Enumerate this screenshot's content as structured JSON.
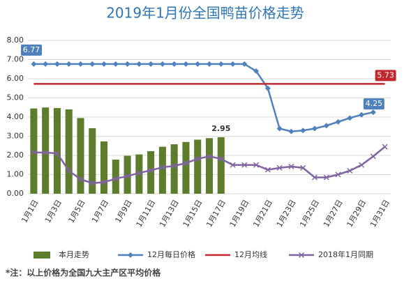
{
  "chart_data": {
    "type": "combo",
    "title": "2019年1月份全国鸭苗价格走势",
    "categories": [
      "1月1日",
      null,
      "1月3日",
      null,
      "1月5日",
      null,
      "1月7日",
      null,
      "1月9日",
      null,
      "1月11日",
      null,
      "1月13日",
      null,
      "1月15日",
      null,
      "1月17日",
      null,
      "1月19日",
      null,
      "1月21日",
      null,
      "1月23日",
      null,
      "1月25日",
      null,
      "1月27日",
      null,
      "1月29日",
      null,
      "1月31日"
    ],
    "ylim": [
      0,
      8
    ],
    "yticks": [
      {
        "value": 0,
        "label": "0.00"
      },
      {
        "value": 1,
        "label": "1.00"
      },
      {
        "value": 2,
        "label": "2.00"
      },
      {
        "value": 3,
        "label": "3.00"
      },
      {
        "value": 4,
        "label": "4.00"
      },
      {
        "value": 5,
        "label": "5.00"
      },
      {
        "value": 6,
        "label": "6.00"
      },
      {
        "value": 7,
        "label": "7.00"
      },
      {
        "value": 8,
        "label": "8.00"
      }
    ],
    "grid": true,
    "series": [
      {
        "name": "本月走势",
        "type": "bar",
        "color": "#5e7d2c",
        "labeled": [
          16
        ],
        "values": [
          4.45,
          4.5,
          4.47,
          4.4,
          3.95,
          3.42,
          2.73,
          1.78,
          1.98,
          2.05,
          2.22,
          2.45,
          2.58,
          2.7,
          2.82,
          2.9,
          2.95,
          null,
          null,
          null,
          null,
          null,
          null,
          null,
          null,
          null,
          null,
          null,
          null,
          null,
          null
        ]
      },
      {
        "name": "12月每日价格",
        "type": "line",
        "marker": "diamond",
        "color": "#4f81bd",
        "labeled": [
          0,
          29
        ],
        "values": [
          6.77,
          6.77,
          6.77,
          6.77,
          6.77,
          6.77,
          6.77,
          6.77,
          6.77,
          6.77,
          6.77,
          6.77,
          6.77,
          6.77,
          6.77,
          6.77,
          6.77,
          6.77,
          6.77,
          6.4,
          5.5,
          3.4,
          3.25,
          3.3,
          3.4,
          3.55,
          3.75,
          3.95,
          4.12,
          4.25,
          null
        ]
      },
      {
        "name": "12月均线",
        "type": "line",
        "marker": "none",
        "color": "#c0282d",
        "labeled": [
          30
        ],
        "values": [
          5.73,
          5.73,
          5.73,
          5.73,
          5.73,
          5.73,
          5.73,
          5.73,
          5.73,
          5.73,
          5.73,
          5.73,
          5.73,
          5.73,
          5.73,
          5.73,
          5.73,
          5.73,
          5.73,
          5.73,
          5.73,
          5.73,
          5.73,
          5.73,
          5.73,
          5.73,
          5.73,
          5.73,
          5.73,
          5.73,
          5.73
        ]
      },
      {
        "name": "2018年1月同期",
        "type": "line",
        "marker": "x",
        "color": "#8064a2",
        "labeled": [],
        "values": [
          2.15,
          2.15,
          2.1,
          1.2,
          0.75,
          0.55,
          0.6,
          0.78,
          0.92,
          1.08,
          1.22,
          1.38,
          1.45,
          1.6,
          1.82,
          1.95,
          1.82,
          1.5,
          1.5,
          1.5,
          1.25,
          1.35,
          1.42,
          1.35,
          0.85,
          0.85,
          1.0,
          1.2,
          1.5,
          1.95,
          2.45
        ]
      }
    ],
    "footnote": "*注：以上价格为全国九大主产区平均价格"
  }
}
